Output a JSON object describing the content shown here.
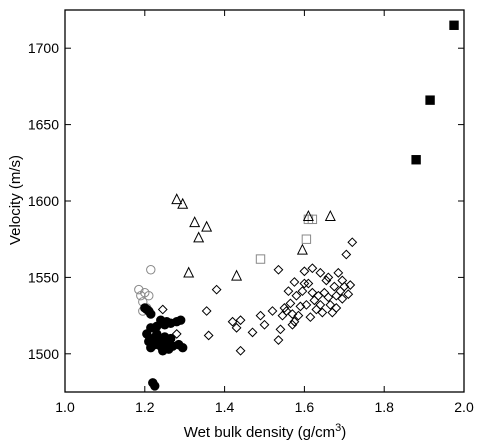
{
  "chart_data": {
    "type": "scatter",
    "title": "",
    "xlabel": "Wet bulk density (g/cm",
    "xlabel_sup": "3",
    "xlabel_end": ")",
    "ylabel": "Velocity (m/s)",
    "xlim": [
      1.0,
      2.0
    ],
    "ylim": [
      1475,
      1725
    ],
    "xticks": [
      1.0,
      1.2,
      1.4,
      1.6,
      1.8,
      2.0
    ],
    "xtick_labels": [
      "1.0",
      "1.2",
      "1.4",
      "1.6",
      "1.8",
      "2.0"
    ],
    "yticks": [
      1500,
      1550,
      1600,
      1650,
      1700
    ],
    "ytick_labels": [
      "1500",
      "1550",
      "1600",
      "1650",
      "1700"
    ],
    "grid": false,
    "legend": "none",
    "series": [
      {
        "marker": "square-filled",
        "points": [
          [
            1.88,
            1627
          ],
          [
            1.915,
            1666
          ],
          [
            1.975,
            1715
          ]
        ]
      },
      {
        "marker": "square-open",
        "points": [
          [
            1.49,
            1562
          ],
          [
            1.605,
            1575
          ],
          [
            1.61,
            1588
          ],
          [
            1.62,
            1588
          ]
        ]
      },
      {
        "marker": "triangle-open",
        "points": [
          [
            1.28,
            1601
          ],
          [
            1.295,
            1598
          ],
          [
            1.31,
            1553
          ],
          [
            1.325,
            1586
          ],
          [
            1.335,
            1576
          ],
          [
            1.355,
            1583
          ],
          [
            1.43,
            1551
          ],
          [
            1.595,
            1568
          ],
          [
            1.61,
            1590
          ],
          [
            1.665,
            1590
          ]
        ]
      },
      {
        "marker": "circle-open",
        "points": [
          [
            1.185,
            1542
          ],
          [
            1.19,
            1538
          ],
          [
            1.195,
            1534
          ],
          [
            1.2,
            1540
          ],
          [
            1.205,
            1530
          ],
          [
            1.21,
            1538
          ],
          [
            1.215,
            1555
          ],
          [
            1.195,
            1528
          ]
        ]
      },
      {
        "marker": "circle-filled",
        "points": [
          [
            1.2,
            1530
          ],
          [
            1.205,
            1529
          ],
          [
            1.21,
            1528
          ],
          [
            1.215,
            1526
          ],
          [
            1.205,
            1513
          ],
          [
            1.21,
            1508
          ],
          [
            1.215,
            1504
          ],
          [
            1.22,
            1510
          ],
          [
            1.225,
            1506
          ],
          [
            1.23,
            1513
          ],
          [
            1.235,
            1509
          ],
          [
            1.24,
            1505
          ],
          [
            1.245,
            1502
          ],
          [
            1.25,
            1511
          ],
          [
            1.255,
            1507
          ],
          [
            1.26,
            1503
          ],
          [
            1.265,
            1510
          ],
          [
            1.27,
            1505
          ],
          [
            1.24,
            1522
          ],
          [
            1.25,
            1519
          ],
          [
            1.255,
            1521
          ],
          [
            1.265,
            1520
          ],
          [
            1.28,
            1521
          ],
          [
            1.29,
            1522
          ],
          [
            1.285,
            1506
          ],
          [
            1.295,
            1504
          ],
          [
            1.22,
            1481
          ],
          [
            1.225,
            1479
          ],
          [
            1.215,
            1517
          ],
          [
            1.23,
            1518
          ]
        ]
      },
      {
        "marker": "diamond-open",
        "points": [
          [
            1.245,
            1529
          ],
          [
            1.28,
            1513
          ],
          [
            1.355,
            1528
          ],
          [
            1.36,
            1512
          ],
          [
            1.38,
            1542
          ],
          [
            1.42,
            1521
          ],
          [
            1.43,
            1517
          ],
          [
            1.44,
            1522
          ],
          [
            1.44,
            1502
          ],
          [
            1.47,
            1514
          ],
          [
            1.49,
            1525
          ],
          [
            1.5,
            1519
          ],
          [
            1.52,
            1528
          ],
          [
            1.535,
            1509
          ],
          [
            1.54,
            1516
          ],
          [
            1.545,
            1525
          ],
          [
            1.55,
            1530
          ],
          [
            1.555,
            1528
          ],
          [
            1.56,
            1541
          ],
          [
            1.565,
            1533
          ],
          [
            1.57,
            1526
          ],
          [
            1.575,
            1521
          ],
          [
            1.575,
            1547
          ],
          [
            1.58,
            1538
          ],
          [
            1.585,
            1525
          ],
          [
            1.59,
            1531
          ],
          [
            1.595,
            1541
          ],
          [
            1.6,
            1554
          ],
          [
            1.605,
            1532
          ],
          [
            1.61,
            1546
          ],
          [
            1.615,
            1524
          ],
          [
            1.62,
            1556
          ],
          [
            1.625,
            1535
          ],
          [
            1.63,
            1529
          ],
          [
            1.635,
            1538
          ],
          [
            1.64,
            1532
          ],
          [
            1.645,
            1527
          ],
          [
            1.65,
            1540
          ],
          [
            1.655,
            1548
          ],
          [
            1.66,
            1537
          ],
          [
            1.665,
            1532
          ],
          [
            1.67,
            1527
          ],
          [
            1.675,
            1544
          ],
          [
            1.68,
            1538
          ],
          [
            1.685,
            1553
          ],
          [
            1.69,
            1541
          ],
          [
            1.695,
            1536
          ],
          [
            1.7,
            1544
          ],
          [
            1.705,
            1565
          ],
          [
            1.71,
            1539
          ],
          [
            1.715,
            1545
          ],
          [
            1.72,
            1573
          ],
          [
            1.535,
            1555
          ],
          [
            1.6,
            1546
          ],
          [
            1.66,
            1550
          ],
          [
            1.68,
            1530
          ],
          [
            1.695,
            1548
          ],
          [
            1.57,
            1519
          ],
          [
            1.64,
            1553
          ],
          [
            1.62,
            1540
          ]
        ]
      }
    ]
  }
}
